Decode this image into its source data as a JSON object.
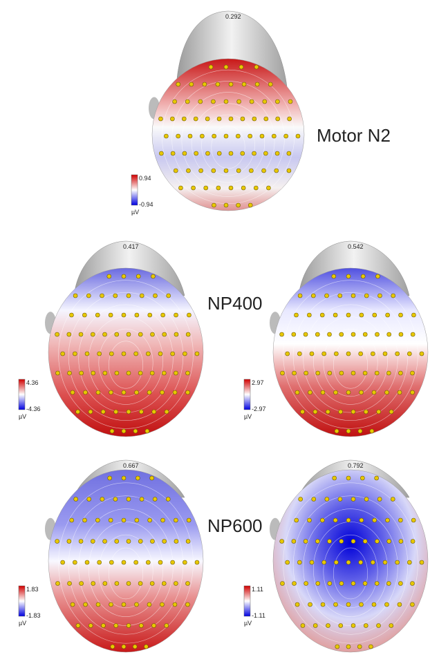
{
  "rows": [
    {
      "label": "Motor N2",
      "panels": [
        {
          "time": "0.292",
          "max": "0.94",
          "min": "-0.94",
          "unit": "µV"
        }
      ]
    },
    {
      "label": "NP400",
      "panels": [
        {
          "time": "0.417",
          "max": "4.36",
          "min": "-4.36",
          "unit": "µV"
        },
        {
          "time": "0.542",
          "max": "2.97",
          "min": "-2.97",
          "unit": "µV"
        }
      ]
    },
    {
      "label": "NP600",
      "panels": [
        {
          "time": "0.667",
          "max": "1.83",
          "min": "-1.83",
          "unit": "µV"
        },
        {
          "time": "0.792",
          "max": "1.11",
          "min": "-1.11",
          "unit": "µV"
        }
      ]
    }
  ]
}
